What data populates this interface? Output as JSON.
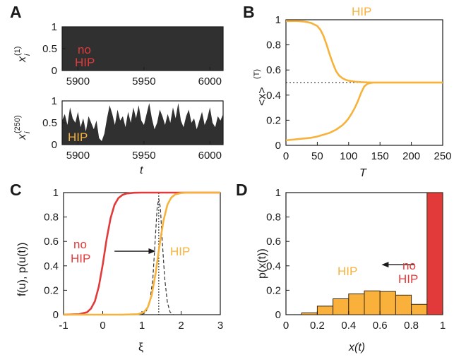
{
  "colors": {
    "orange": "#f7b23b",
    "red": "#e23a3a",
    "dark": "#303030",
    "hist_fill": "#f9b13b",
    "hist_edge": "#3a2a10"
  },
  "panels": {
    "A": {
      "letter": "A",
      "top": {
        "ylabel": "x",
        "ylabel_sub": "i",
        "ylabel_sup": "(1)",
        "annotation_line1": "no",
        "annotation_line2": "HIP"
      },
      "bottom": {
        "ylabel": "x",
        "ylabel_sub": "i",
        "ylabel_sup": "(250)",
        "annotation": "HIP",
        "xlabel": "t"
      }
    },
    "B": {
      "letter": "B",
      "title": "HIP",
      "ylabel": "<x>",
      "ylabel_sup": "(T)",
      "xlabel": "T"
    },
    "C": {
      "letter": "C",
      "ylabel": "f(u), p(u(t))",
      "xlabel": "ξ",
      "anno_left_line1": "no",
      "anno_left_line2": "HIP",
      "anno_right": "HIP"
    },
    "D": {
      "letter": "D",
      "ylabel": "p(x(t))",
      "xlabel": "x(t)",
      "anno_left": "HIP",
      "anno_right_line1": "no",
      "anno_right_line2": "HIP"
    }
  },
  "chart_data": [
    {
      "panel": "A-top",
      "type": "area",
      "x_range": [
        5888,
        6010
      ],
      "ylim": [
        0,
        1
      ],
      "xticks": [
        5900,
        5950,
        6000
      ],
      "yticks": [
        0,
        0.5,
        1
      ],
      "series": [
        {
          "x": [
            5888,
            6010
          ],
          "values": [
            1,
            1
          ]
        }
      ]
    },
    {
      "panel": "A-bottom",
      "type": "area",
      "x_range": [
        5888,
        6010
      ],
      "ylim": [
        0,
        1
      ],
      "xticks": [
        5900,
        5950,
        6000
      ],
      "yticks": [
        0,
        0.5,
        1
      ],
      "series": [
        {
          "x": [
            5888,
            5890,
            5892,
            5894,
            5896,
            5898,
            5900,
            5902,
            5904,
            5906,
            5908,
            5910,
            5912,
            5914,
            5916,
            5918,
            5920,
            5922,
            5924,
            5926,
            5928,
            5930,
            5932,
            5934,
            5936,
            5938,
            5940,
            5942,
            5944,
            5946,
            5948,
            5950,
            5952,
            5954,
            5956,
            5958,
            5960,
            5962,
            5964,
            5966,
            5968,
            5970,
            5972,
            5974,
            5976,
            5978,
            5980,
            5982,
            5984,
            5986,
            5988,
            5990,
            5992,
            5994,
            5996,
            5998,
            6000,
            6002,
            6004,
            6006,
            6008,
            6010
          ],
          "values": [
            0.55,
            0.7,
            0.45,
            0.85,
            0.6,
            0.5,
            0.75,
            0.4,
            0.6,
            0.3,
            0.65,
            0.5,
            0.35,
            0.55,
            0.15,
            0.08,
            0.25,
            0.6,
            0.9,
            0.7,
            0.45,
            0.8,
            0.55,
            0.65,
            0.4,
            0.75,
            0.5,
            0.85,
            0.6,
            0.9,
            0.55,
            0.45,
            0.7,
            0.95,
            0.6,
            0.35,
            0.5,
            0.8,
            0.65,
            0.45,
            0.7,
            0.5,
            0.85,
            0.6,
            0.95,
            0.55,
            0.4,
            0.65,
            0.8,
            0.5,
            0.6,
            0.35,
            0.55,
            0.75,
            0.45,
            0.6,
            0.85,
            0.5,
            0.4,
            0.65,
            0.55,
            0.7
          ]
        }
      ]
    },
    {
      "panel": "B",
      "type": "line",
      "xlim": [
        0,
        250
      ],
      "ylim": [
        0,
        1
      ],
      "xticks": [
        0,
        50,
        100,
        150,
        200,
        250
      ],
      "yticks": [
        0,
        0.2,
        0.4,
        0.6,
        0.8,
        1
      ],
      "series": [
        {
          "x": [
            0,
            10,
            20,
            30,
            40,
            50,
            55,
            60,
            65,
            70,
            75,
            80,
            85,
            90,
            95,
            100,
            110,
            120,
            130,
            140,
            150,
            175,
            200,
            225,
            250
          ],
          "values": [
            0.99,
            0.99,
            0.99,
            0.985,
            0.975,
            0.95,
            0.92,
            0.87,
            0.8,
            0.72,
            0.65,
            0.59,
            0.555,
            0.535,
            0.522,
            0.515,
            0.507,
            0.503,
            0.501,
            0.5,
            0.5,
            0.5,
            0.5,
            0.5,
            0.5
          ]
        },
        {
          "x": [
            0,
            10,
            20,
            30,
            40,
            50,
            60,
            70,
            80,
            90,
            95,
            100,
            105,
            110,
            115,
            120,
            125,
            130,
            135,
            140,
            150,
            175,
            200,
            225,
            250
          ],
          "values": [
            0.04,
            0.045,
            0.05,
            0.055,
            0.06,
            0.07,
            0.085,
            0.1,
            0.125,
            0.16,
            0.185,
            0.215,
            0.255,
            0.3,
            0.355,
            0.42,
            0.47,
            0.49,
            0.497,
            0.5,
            0.5,
            0.5,
            0.5,
            0.5,
            0.5
          ]
        }
      ],
      "reference_line_y": 0.5
    },
    {
      "panel": "C",
      "type": "line",
      "xlim": [
        -1,
        3
      ],
      "ylim": [
        0,
        1
      ],
      "xticks": [
        -1,
        0,
        1,
        2,
        3
      ],
      "yticks": [
        0,
        0.2,
        0.4,
        0.6,
        0.8,
        1
      ],
      "series": [
        {
          "x": [
            -1,
            -0.6,
            -0.4,
            -0.3,
            -0.2,
            -0.1,
            0,
            0.1,
            0.2,
            0.3,
            0.4,
            0.5,
            0.6,
            0.8,
            1,
            2,
            3
          ],
          "values": [
            0,
            0.004,
            0.02,
            0.05,
            0.11,
            0.23,
            0.41,
            0.62,
            0.79,
            0.9,
            0.955,
            0.98,
            0.992,
            0.999,
            1,
            1,
            1
          ]
        },
        {
          "x": [
            -1,
            0.5,
            0.9,
            1.05,
            1.15,
            1.25,
            1.35,
            1.45,
            1.55,
            1.65,
            1.75,
            1.85,
            2.0,
            2.2,
            3
          ],
          "values": [
            0,
            0,
            0.004,
            0.02,
            0.06,
            0.16,
            0.34,
            0.57,
            0.77,
            0.9,
            0.96,
            0.985,
            0.997,
            1,
            1
          ]
        },
        {
          "x": [
            1.0,
            1.1,
            1.2,
            1.28,
            1.34,
            1.39,
            1.43,
            1.47,
            1.52,
            1.58,
            1.65,
            1.72,
            1.8
          ],
          "values": [
            0,
            0.02,
            0.1,
            0.3,
            0.62,
            0.88,
            0.95,
            0.88,
            0.6,
            0.3,
            0.1,
            0.02,
            0
          ]
        }
      ],
      "reference_line_x": 1.43,
      "arrow": {
        "from_x": 0.3,
        "to_x": 1.35,
        "y": 0.52
      }
    },
    {
      "panel": "D",
      "type": "bar",
      "xlim": [
        0,
        1
      ],
      "ylim": [
        0,
        1
      ],
      "xticks": [
        0,
        0.2,
        0.4,
        0.6,
        0.8,
        1
      ],
      "yticks": [
        0,
        0.2,
        0.4,
        0.6,
        0.8,
        1
      ],
      "bin_width": 0.1,
      "series": [
        {
          "bin_starts": [
            0.1,
            0.2,
            0.3,
            0.4,
            0.5,
            0.6,
            0.7,
            0.8
          ],
          "values": [
            0.015,
            0.07,
            0.13,
            0.17,
            0.195,
            0.19,
            0.16,
            0.085
          ]
        },
        {
          "bin_starts": [
            0.9
          ],
          "values": [
            1.0
          ]
        }
      ],
      "arrow": {
        "from_x": 0.82,
        "to_x": 0.61,
        "y": 0.41
      }
    }
  ]
}
